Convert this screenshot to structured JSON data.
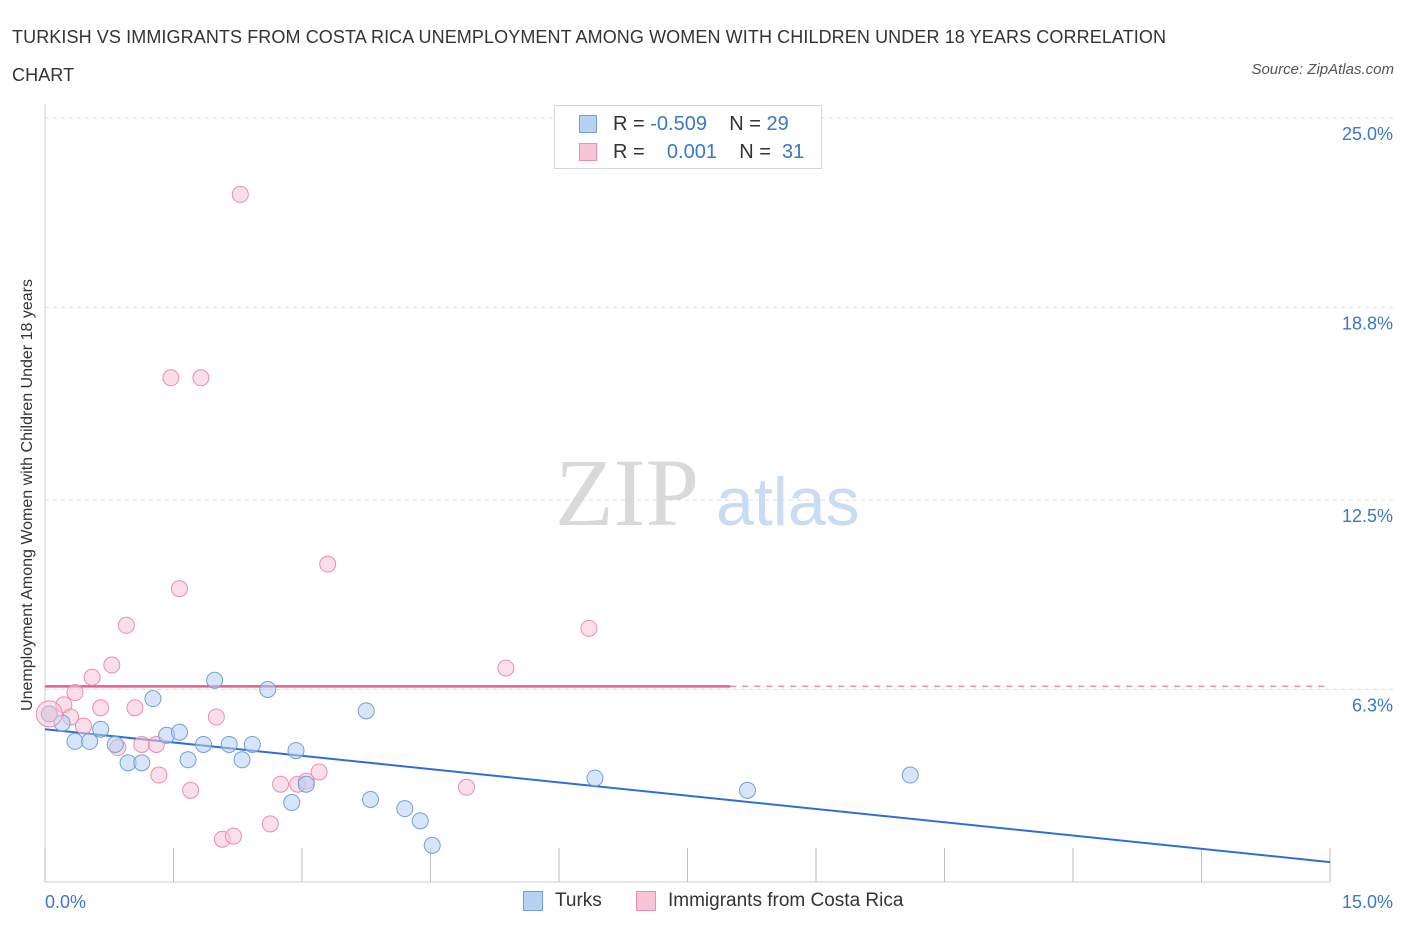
{
  "title": "TURKISH VS IMMIGRANTS FROM COSTA RICA UNEMPLOYMENT AMONG WOMEN WITH CHILDREN UNDER 18 YEARS CORRELATION CHART",
  "source": "Source: ZipAtlas.com",
  "watermark": {
    "zip": "ZIP",
    "atlas": "atlas"
  },
  "legend_top": [
    {
      "r_label": "R =",
      "r_value": "-0.509",
      "n_label": "N =",
      "n_value": "29"
    },
    {
      "r_label": "R =",
      "r_value": "0.001",
      "n_label": "N =",
      "n_value": "31"
    }
  ],
  "colors": {
    "turks_fill": "#b8d0f4",
    "turks_stroke": "#6f9fdc",
    "turks_line": "#2f6fd1",
    "cr_fill": "#f8c5d6",
    "cr_stroke": "#e98eaf",
    "cr_line": "#e0608a",
    "grid": "#dcdcdc",
    "axis_text": "#3a78c9"
  },
  "chart_data": {
    "type": "scatter",
    "title": "TURKISH VS IMMIGRANTS FROM COSTA RICA UNEMPLOYMENT AMONG WOMEN WITH CHILDREN UNDER 18 YEARS CORRELATION CHART",
    "xlabel": "",
    "ylabel": "Unemployment Among Women with Children Under 18 years",
    "xlim": [
      0,
      15
    ],
    "ylim": [
      0,
      25
    ],
    "x_tick_labels": [
      {
        "value": 0,
        "label": "0.0%"
      },
      {
        "value": 15,
        "label": "15.0%"
      }
    ],
    "y_tick_labels": [
      {
        "value": 25,
        "label": "25.0%"
      },
      {
        "value": 18.8,
        "label": "18.8%"
      },
      {
        "value": 12.5,
        "label": "12.5%"
      },
      {
        "value": 6.3,
        "label": "6.3%"
      }
    ],
    "legend": [
      "Turks",
      "Immigrants from Costa Rica"
    ],
    "series": [
      {
        "name": "Turks",
        "r": -0.509,
        "n": 29,
        "points": [
          [
            0.05,
            5.5
          ],
          [
            0.2,
            5.2
          ],
          [
            0.35,
            4.6
          ],
          [
            0.52,
            4.6
          ],
          [
            0.65,
            5.0
          ],
          [
            0.82,
            4.5
          ],
          [
            0.97,
            3.9
          ],
          [
            1.13,
            3.9
          ],
          [
            1.26,
            6.0
          ],
          [
            1.42,
            4.8
          ],
          [
            1.57,
            4.9
          ],
          [
            1.67,
            4.0
          ],
          [
            1.85,
            4.5
          ],
          [
            1.98,
            6.6
          ],
          [
            2.15,
            4.5
          ],
          [
            2.3,
            4.0
          ],
          [
            2.42,
            4.5
          ],
          [
            2.6,
            6.3
          ],
          [
            2.88,
            2.6
          ],
          [
            2.93,
            4.3
          ],
          [
            3.05,
            3.2
          ],
          [
            3.75,
            5.6
          ],
          [
            3.8,
            2.7
          ],
          [
            4.2,
            2.4
          ],
          [
            4.38,
            2.0
          ],
          [
            4.52,
            1.2
          ],
          [
            6.42,
            3.4
          ],
          [
            8.2,
            3.0
          ],
          [
            10.1,
            3.5
          ]
        ],
        "trend": {
          "x": [
            0,
            15
          ],
          "y": [
            5.0,
            0.65
          ],
          "style": "solid"
        }
      },
      {
        "name": "Immigrants from Costa Rica",
        "r": 0.001,
        "n": 31,
        "points": [
          [
            0.05,
            5.5
          ],
          [
            0.22,
            5.8
          ],
          [
            0.3,
            5.4
          ],
          [
            0.35,
            6.2
          ],
          [
            0.45,
            5.1
          ],
          [
            0.55,
            6.7
          ],
          [
            0.65,
            5.7
          ],
          [
            0.78,
            7.1
          ],
          [
            0.85,
            4.4
          ],
          [
            0.95,
            8.4
          ],
          [
            1.05,
            5.7
          ],
          [
            1.13,
            4.5
          ],
          [
            1.3,
            4.5
          ],
          [
            1.33,
            3.5
          ],
          [
            1.47,
            16.5
          ],
          [
            1.57,
            9.6
          ],
          [
            1.7,
            3.0
          ],
          [
            1.82,
            16.5
          ],
          [
            2.0,
            5.4
          ],
          [
            2.07,
            1.4
          ],
          [
            2.2,
            1.5
          ],
          [
            2.28,
            22.5
          ],
          [
            2.63,
            1.9
          ],
          [
            2.75,
            3.2
          ],
          [
            2.95,
            3.2
          ],
          [
            3.05,
            3.3
          ],
          [
            3.2,
            3.6
          ],
          [
            3.3,
            10.4
          ],
          [
            4.92,
            3.1
          ],
          [
            5.38,
            7.0
          ],
          [
            6.35,
            8.3
          ]
        ],
        "trend": {
          "x": [
            0,
            8.0
          ],
          "y": [
            6.4,
            6.4
          ],
          "dashed_extension_to": 15,
          "style": "solid-then-dashed"
        }
      }
    ]
  },
  "legend_bottom": [
    {
      "label": "Turks"
    },
    {
      "label": "Immigrants from Costa Rica"
    }
  ]
}
